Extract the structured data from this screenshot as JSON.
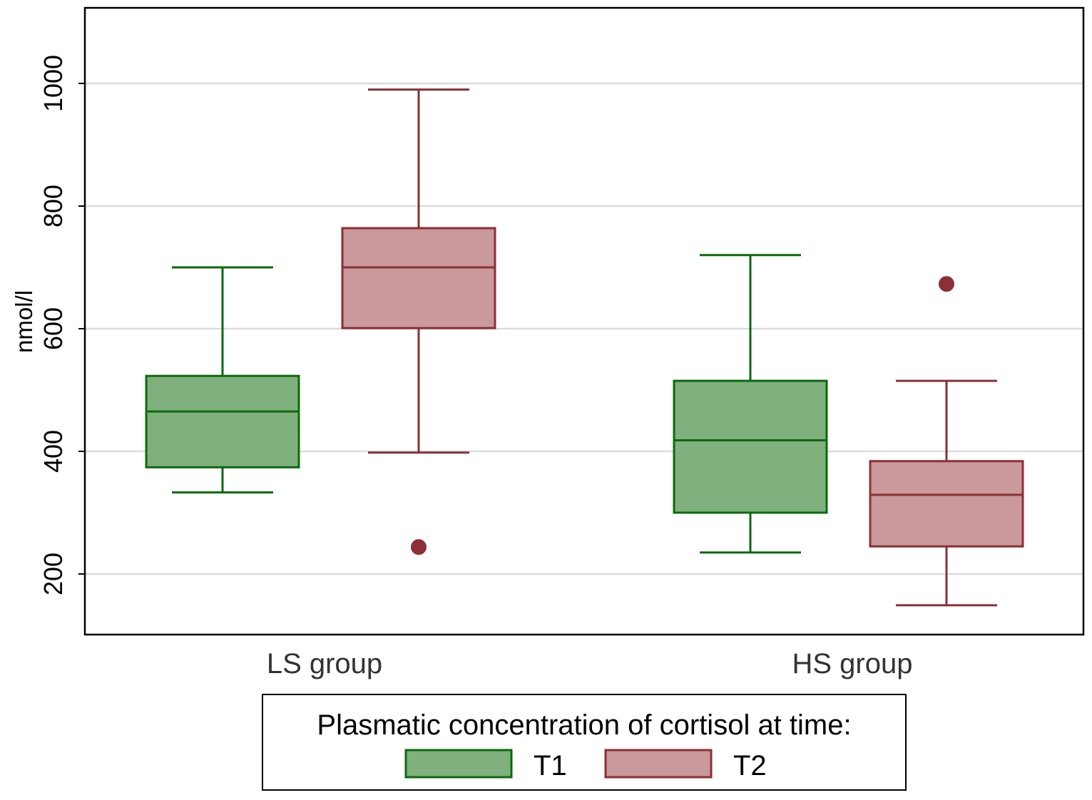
{
  "chart_data": {
    "type": "box",
    "ylabel": "nmol/l",
    "ylim": [
      100,
      1120
    ],
    "yticks": [
      200,
      400,
      600,
      800,
      1000
    ],
    "grid": true,
    "categories": [
      "LS group",
      "HS group"
    ],
    "legend": {
      "title": "Plasmatic concentration of cortisol at time:",
      "placement": "bottom",
      "entries": [
        "T1",
        "T2"
      ]
    },
    "series": [
      {
        "name": "T1",
        "fill": "#80b07e",
        "stroke": "#0c6a0c",
        "boxes": [
          {
            "category": "LS group",
            "whisker_low": 333,
            "q1": 374,
            "median": 465,
            "q3": 523,
            "whisker_high": 700,
            "outliers": []
          },
          {
            "category": "HS group",
            "whisker_low": 235,
            "q1": 300,
            "median": 418,
            "q3": 515,
            "whisker_high": 720,
            "outliers": []
          }
        ]
      },
      {
        "name": "T2",
        "fill": "#c9999b",
        "stroke": "#8b3036",
        "boxes": [
          {
            "category": "LS group",
            "whisker_low": 398,
            "q1": 601,
            "median": 700,
            "q3": 764,
            "whisker_high": 990,
            "outliers": [
              244
            ]
          },
          {
            "category": "HS group",
            "whisker_low": 149,
            "q1": 245,
            "median": 329,
            "q3": 384,
            "whisker_high": 515,
            "outliers": [
              673
            ]
          }
        ]
      }
    ]
  }
}
